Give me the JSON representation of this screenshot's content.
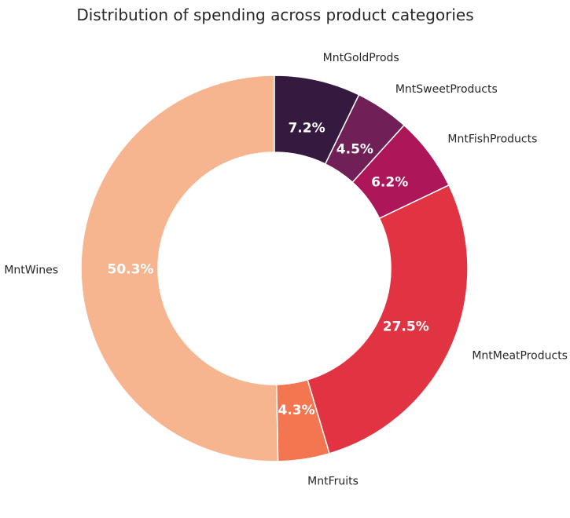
{
  "chart_data": {
    "type": "pie",
    "variant": "donut",
    "title": "Distribution of spending across product categories",
    "start_angle_deg": 90,
    "direction": "counterclockwise",
    "slices": [
      {
        "label": "MntWines",
        "value": 50.3,
        "pct_label": "50.3%",
        "color": "#f6b48f"
      },
      {
        "label": "MntFruits",
        "value": 4.3,
        "pct_label": "4.3%",
        "color": "#f37651"
      },
      {
        "label": "MntMeatProducts",
        "value": 27.5,
        "pct_label": "27.5%",
        "color": "#e13342"
      },
      {
        "label": "MntFishProducts",
        "value": 6.2,
        "pct_label": "6.2%",
        "color": "#ad1759"
      },
      {
        "label": "MntSweetProducts",
        "value": 4.5,
        "pct_label": "4.5%",
        "color": "#701f57"
      },
      {
        "label": "MntGoldProds",
        "value": 7.2,
        "pct_label": "7.2%",
        "color": "#35193e"
      }
    ]
  }
}
